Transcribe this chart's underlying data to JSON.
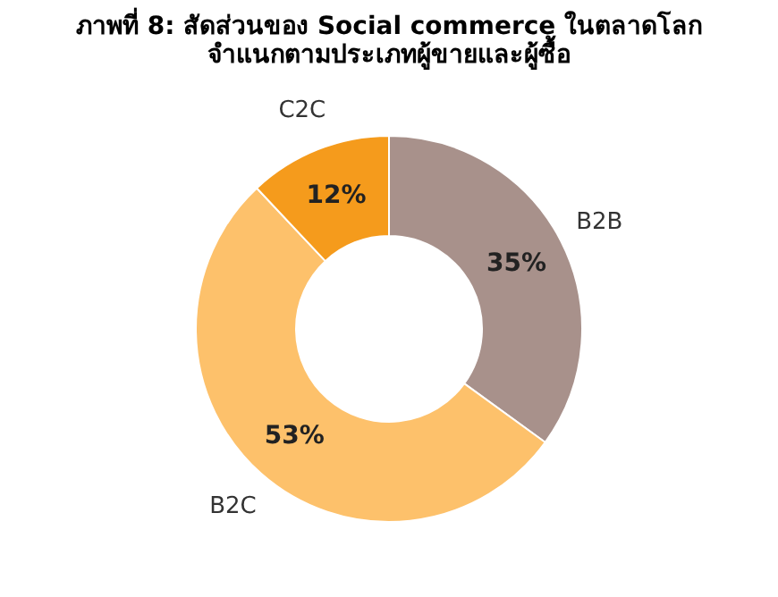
{
  "chart_data": {
    "type": "donut",
    "title": [
      "ภาพที่ 8: สัดส่วนของ Social commerce ในตลาดโลก",
      "จำแนกตามประเภทผู้ขายและผู้ซื้อ"
    ],
    "categories": [
      "B2B",
      "B2C",
      "C2C"
    ],
    "values": [
      35,
      53,
      12
    ],
    "colors": [
      "#a8918b",
      "#fdc16b",
      "#f59b1c"
    ],
    "value_labels": [
      "35%",
      "53%",
      "12%"
    ],
    "legend": false
  }
}
